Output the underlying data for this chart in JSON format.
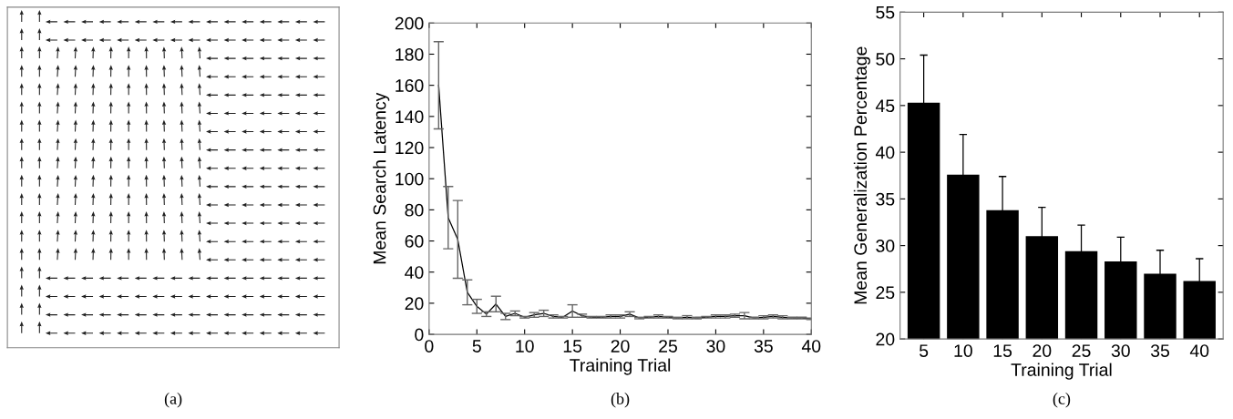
{
  "chart_data": [
    {
      "type": "other",
      "annotations": [
        "(a)"
      ]
    },
    {
      "type": "line",
      "xlabel": "Training Trial",
      "ylabel": "Mean Search Latency",
      "xlim": [
        0,
        40
      ],
      "xticks": [
        0,
        5,
        10,
        15,
        20,
        25,
        30,
        35,
        40
      ],
      "ylim": [
        0,
        200
      ],
      "yticks": [
        0,
        20,
        40,
        60,
        80,
        100,
        120,
        140,
        160,
        180,
        200
      ],
      "grid": false,
      "marker": "none",
      "line_style": "solid",
      "annotations": [
        "(b)"
      ],
      "x": [
        1,
        2,
        3,
        4,
        5,
        6,
        7,
        8,
        9,
        10,
        11,
        12,
        13,
        14,
        15,
        16,
        17,
        18,
        19,
        20,
        21,
        22,
        23,
        24,
        25,
        26,
        27,
        28,
        29,
        30,
        31,
        32,
        33,
        34,
        35,
        36,
        37,
        38,
        39,
        40
      ],
      "series": [
        {
          "color": "#000000",
          "values": [
            160,
            75,
            61,
            27,
            18,
            13,
            19.5,
            11.5,
            13.5,
            11,
            12.5,
            13.5,
            11.5,
            11,
            15,
            12,
            11,
            11,
            11.5,
            11.5,
            13,
            10.5,
            11,
            11.5,
            11,
            10.5,
            11,
            10.5,
            11,
            11.5,
            11.5,
            12,
            12,
            10.5,
            11,
            11.5,
            11,
            10.5,
            10.5,
            10
          ],
          "errors": [
            28,
            20,
            25,
            8,
            4.5,
            1.5,
            5,
            2,
            1.5,
            0.5,
            1.5,
            2,
            1,
            0.5,
            4,
            1,
            0.5,
            0.5,
            1,
            1,
            1.5,
            0.5,
            0.5,
            1,
            0.5,
            0.5,
            1,
            0.5,
            0.5,
            1,
            1,
            1,
            2,
            0.5,
            1,
            1,
            1,
            0.5,
            0.5,
            0.5
          ]
        }
      ]
    },
    {
      "type": "bar",
      "xlabel": "Training Trial",
      "ylabel": "Mean Generalization Percentage",
      "categories": [
        "5",
        "10",
        "15",
        "20",
        "25",
        "30",
        "35",
        "40"
      ],
      "ylim": [
        20,
        55
      ],
      "yticks": [
        20,
        25,
        30,
        35,
        40,
        45,
        50,
        55
      ],
      "grid": false,
      "annotations": [
        "(c)"
      ],
      "series": [
        {
          "color": "#000000",
          "values": [
            45.3,
            37.6,
            33.8,
            31.0,
            29.4,
            28.3,
            27.0,
            26.2
          ],
          "errors": [
            5.1,
            4.3,
            3.6,
            3.1,
            2.8,
            2.6,
            2.5,
            2.4
          ]
        }
      ]
    }
  ]
}
